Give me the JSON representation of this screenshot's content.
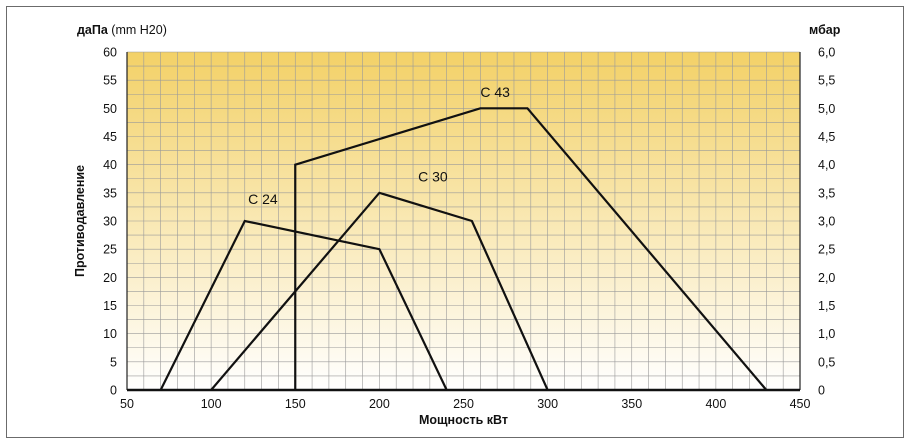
{
  "chart_data": {
    "type": "line",
    "title": "",
    "xlabel": "Мощность кВт",
    "ylabel": "Противодавление",
    "y_unit_left_bold": "даПа",
    "y_unit_left_light": " (mm H20)",
    "y_unit_right": "мбар",
    "xlim": [
      50,
      450
    ],
    "ylim": [
      0,
      60
    ],
    "y2lim": [
      0,
      6
    ],
    "x_ticks": [
      "50",
      "100",
      "150",
      "200",
      "250",
      "300",
      "350",
      "400",
      "450"
    ],
    "y_ticks": [
      "0",
      "5",
      "10",
      "15",
      "20",
      "25",
      "30",
      "35",
      "40",
      "45",
      "50",
      "55",
      "60"
    ],
    "y2_ticks": [
      "0",
      "0,5",
      "1,0",
      "1,5",
      "2,0",
      "2,5",
      "3,0",
      "3,5",
      "4,0",
      "4,5",
      "5,0",
      "5,5",
      "6,0"
    ],
    "x_gridlines_every": 10,
    "y_gridlines_every": 2.5,
    "grid": true,
    "background_gradient": [
      "#f3d167",
      "#ffffff"
    ],
    "series": [
      {
        "name": "C 24",
        "points": [
          [
            70,
            0
          ],
          [
            120,
            30
          ],
          [
            200,
            25
          ],
          [
            240,
            0
          ]
        ],
        "label_at": [
          122,
          33
        ]
      },
      {
        "name": "C 30",
        "points": [
          [
            100,
            0
          ],
          [
            200,
            35
          ],
          [
            255,
            30
          ],
          [
            300,
            0
          ]
        ],
        "label_at": [
          223,
          37
        ]
      },
      {
        "name": "C 43",
        "points": [
          [
            150,
            0
          ],
          [
            150,
            40
          ],
          [
            260,
            50
          ],
          [
            288,
            50
          ],
          [
            430,
            0
          ]
        ],
        "label_at": [
          260,
          52
        ]
      }
    ]
  }
}
